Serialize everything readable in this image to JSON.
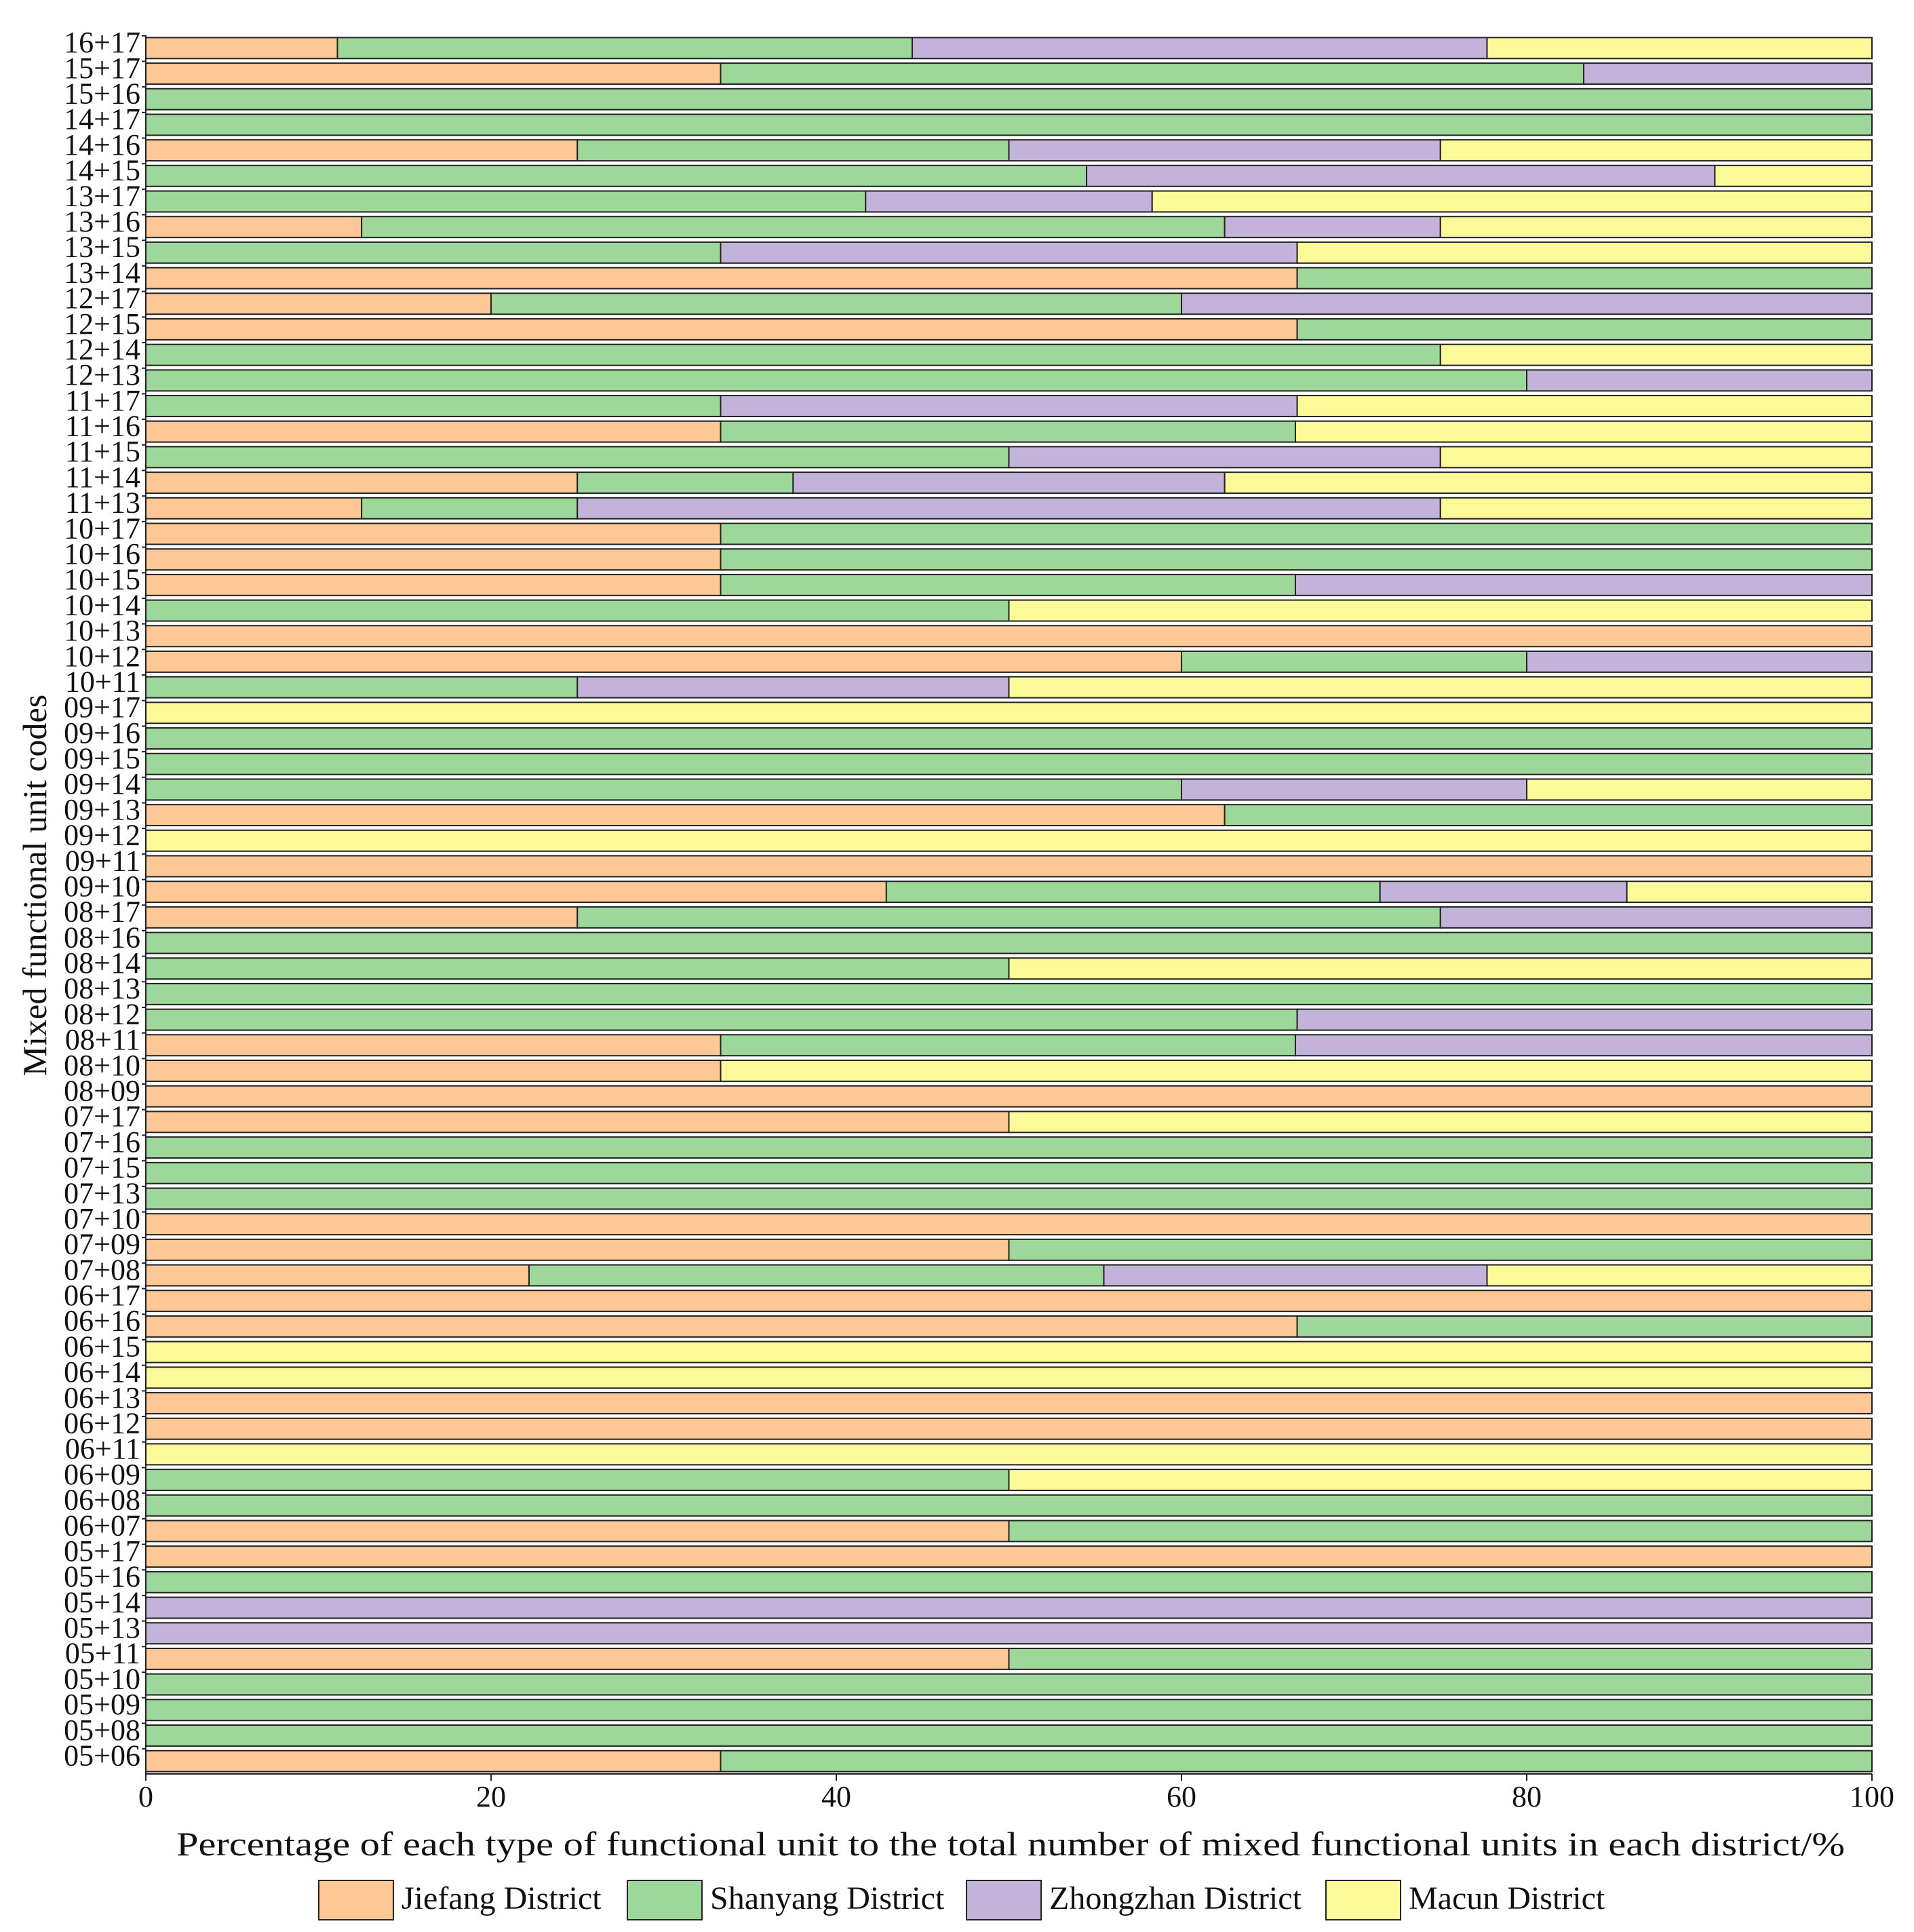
{
  "chart_data": {
    "type": "bar",
    "orientation": "horizontal",
    "stacked": true,
    "xlabel": "Percentage of each type of functional unit to the total number of mixed functional units in each district/%",
    "ylabel": "Mixed functional unit codes",
    "xlim": [
      0,
      100
    ],
    "xticks": [
      0,
      20,
      40,
      60,
      80,
      100
    ],
    "legend_position": "bottom",
    "categories": [
      "05+06",
      "05+08",
      "05+09",
      "05+10",
      "05+11",
      "05+13",
      "05+14",
      "05+16",
      "05+17",
      "06+07",
      "06+08",
      "06+09",
      "06+11",
      "06+12",
      "06+13",
      "06+14",
      "06+15",
      "06+16",
      "06+17",
      "07+08",
      "07+09",
      "07+10",
      "07+13",
      "07+15",
      "07+16",
      "07+17",
      "08+09",
      "08+10",
      "08+11",
      "08+12",
      "08+13",
      "08+14",
      "08+16",
      "08+17",
      "09+10",
      "09+11",
      "09+12",
      "09+13",
      "09+14",
      "09+15",
      "09+16",
      "09+17",
      "10+11",
      "10+12",
      "10+13",
      "10+14",
      "10+15",
      "10+16",
      "10+17",
      "11+13",
      "11+14",
      "11+15",
      "11+16",
      "11+17",
      "12+13",
      "12+14",
      "12+15",
      "12+17",
      "13+14",
      "13+15",
      "13+16",
      "13+17",
      "14+15",
      "14+16",
      "14+17",
      "15+16",
      "15+17",
      "16+17"
    ],
    "series": [
      {
        "name": "Jiefang District",
        "color": "#FDC896",
        "values": [
          33.3,
          0,
          0,
          0,
          50,
          0,
          0,
          0,
          100,
          50,
          0,
          0,
          0,
          100,
          100,
          0,
          0,
          66.7,
          100,
          22.2,
          50,
          100,
          0,
          0,
          0,
          50,
          100,
          33.3,
          33.3,
          0,
          0,
          0,
          0,
          25,
          42.9,
          100,
          0,
          62.5,
          0,
          0,
          0,
          0,
          0,
          60,
          100,
          0,
          33.3,
          33.3,
          33.3,
          12.5,
          25,
          0,
          33.3,
          0,
          0,
          0,
          66.7,
          20,
          66.7,
          0,
          12.5,
          0,
          0,
          25,
          0,
          0,
          33.3,
          11.1
        ]
      },
      {
        "name": "Shanyang District",
        "color": "#9DD79A",
        "values": [
          66.7,
          100,
          100,
          100,
          50,
          0,
          0,
          100,
          0,
          50,
          100,
          50,
          0,
          0,
          0,
          0,
          0,
          33.3,
          0,
          33.3,
          50,
          0,
          100,
          100,
          100,
          0,
          0,
          0,
          33.3,
          66.7,
          100,
          50,
          100,
          50,
          28.6,
          0,
          0,
          37.5,
          60,
          100,
          100,
          0,
          25,
          20,
          0,
          50,
          33.3,
          66.7,
          66.7,
          12.5,
          12.5,
          50,
          33.3,
          33.3,
          80,
          75,
          33.3,
          40,
          33.3,
          33.3,
          50,
          41.7,
          54.5,
          25,
          100,
          100,
          50,
          33.3
        ]
      },
      {
        "name": "Zhongzhan District",
        "color": "#C3B3DA",
        "values": [
          0,
          0,
          0,
          0,
          0,
          100,
          100,
          0,
          0,
          0,
          0,
          0,
          0,
          0,
          0,
          0,
          0,
          0,
          0,
          22.2,
          0,
          0,
          0,
          0,
          0,
          0,
          0,
          0,
          33.4,
          33.3,
          0,
          0,
          0,
          25,
          14.3,
          0,
          0,
          0,
          20,
          0,
          0,
          0,
          25,
          20,
          0,
          0,
          33.4,
          0,
          0,
          50,
          25,
          25,
          0,
          33.4,
          20,
          0,
          0,
          40,
          0,
          33.4,
          12.5,
          16.6,
          36.4,
          25,
          0,
          0,
          16.7,
          33.3
        ]
      },
      {
        "name": "Macun District",
        "color": "#FCFA98",
        "values": [
          0,
          0,
          0,
          0,
          0,
          0,
          0,
          0,
          0,
          0,
          0,
          50,
          100,
          0,
          0,
          100,
          100,
          0,
          0,
          22.3,
          0,
          0,
          0,
          0,
          0,
          50,
          0,
          66.7,
          0,
          0,
          0,
          50,
          0,
          0,
          14.2,
          0,
          100,
          0,
          20,
          0,
          0,
          100,
          50,
          0,
          0,
          50,
          0,
          0,
          0,
          25,
          37.5,
          25,
          33.4,
          33.3,
          0,
          25,
          0,
          0,
          0,
          33.3,
          25,
          41.7,
          9.1,
          25,
          0,
          0,
          0,
          22.3
        ]
      }
    ]
  }
}
